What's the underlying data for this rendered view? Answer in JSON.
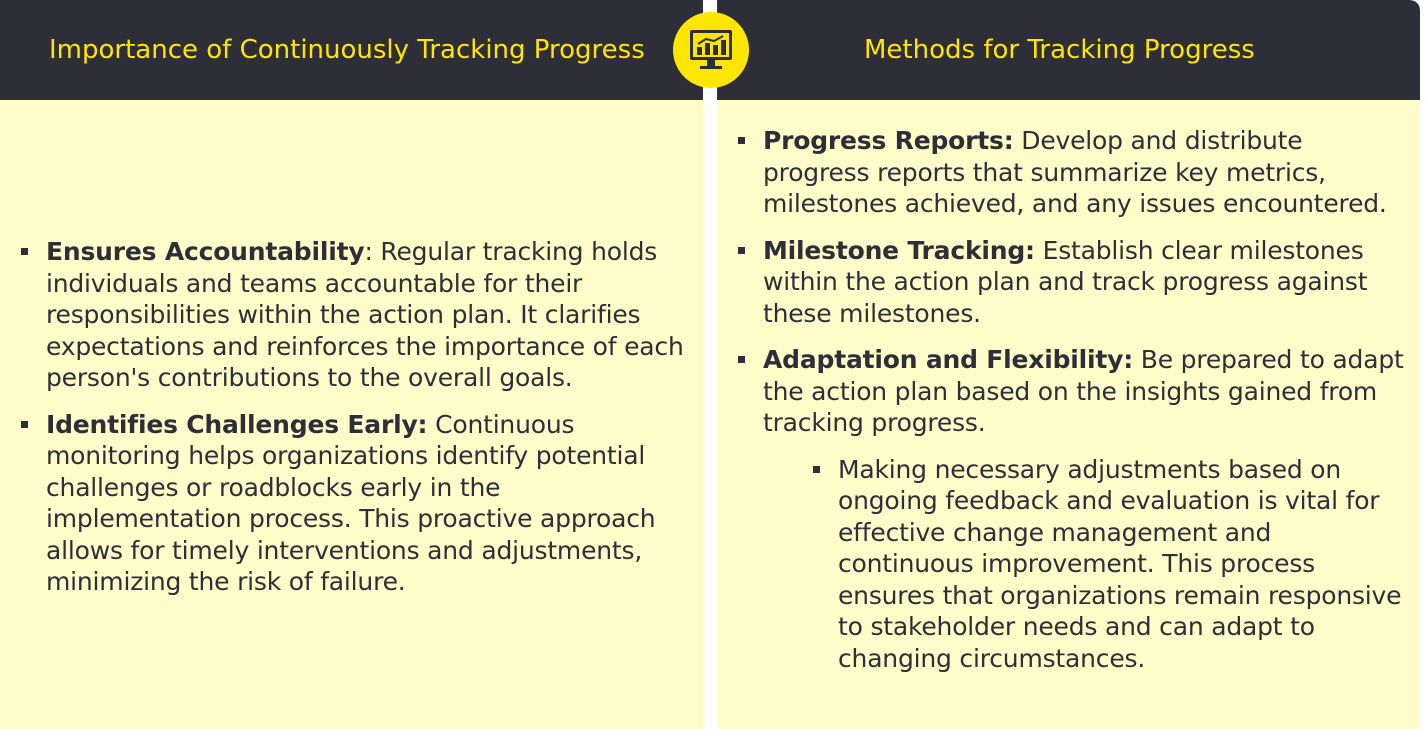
{
  "left": {
    "header": "Importance of Continuously Tracking Progress",
    "items": [
      {
        "title": "Ensures Accountability",
        "text": ": Regular tracking holds individuals and teams accountable for their responsibilities within the action plan. It clarifies expectations and reinforces the importance of each person's contributions to the overall goals."
      },
      {
        "title": "Identifies Challenges Early:",
        "text": " Continuous monitoring helps organizations identify potential challenges or roadblocks early in the implementation process. This proactive approach allows for timely interventions and adjustments, minimizing the risk of failure."
      }
    ]
  },
  "right": {
    "header": "Methods for Tracking Progress",
    "items": [
      {
        "title": "Progress Reports:",
        "text": " Develop and distribute progress reports that summarize key metrics, milestones achieved, and any issues encountered."
      },
      {
        "title": "Milestone Tracking:",
        "text": " Establish clear milestones within the action plan and track progress against these milestones."
      },
      {
        "title": "Adaptation and Flexibility:",
        "text": " Be prepared to adapt the action plan based on the insights gained from tracking progress."
      }
    ],
    "sub_item": "Making necessary adjustments based on ongoing feedback and evaluation is vital for effective change management and continuous improvement. This process ensures that organizations remain responsive to stakeholder needs and can adapt to changing circumstances."
  },
  "colors": {
    "header_bg": "#2e2e38",
    "accent": "#ffe600",
    "panel_bg": "#fefcc9",
    "text": "#2e2e38"
  },
  "icons": {
    "center": "monitor-chart-icon"
  }
}
